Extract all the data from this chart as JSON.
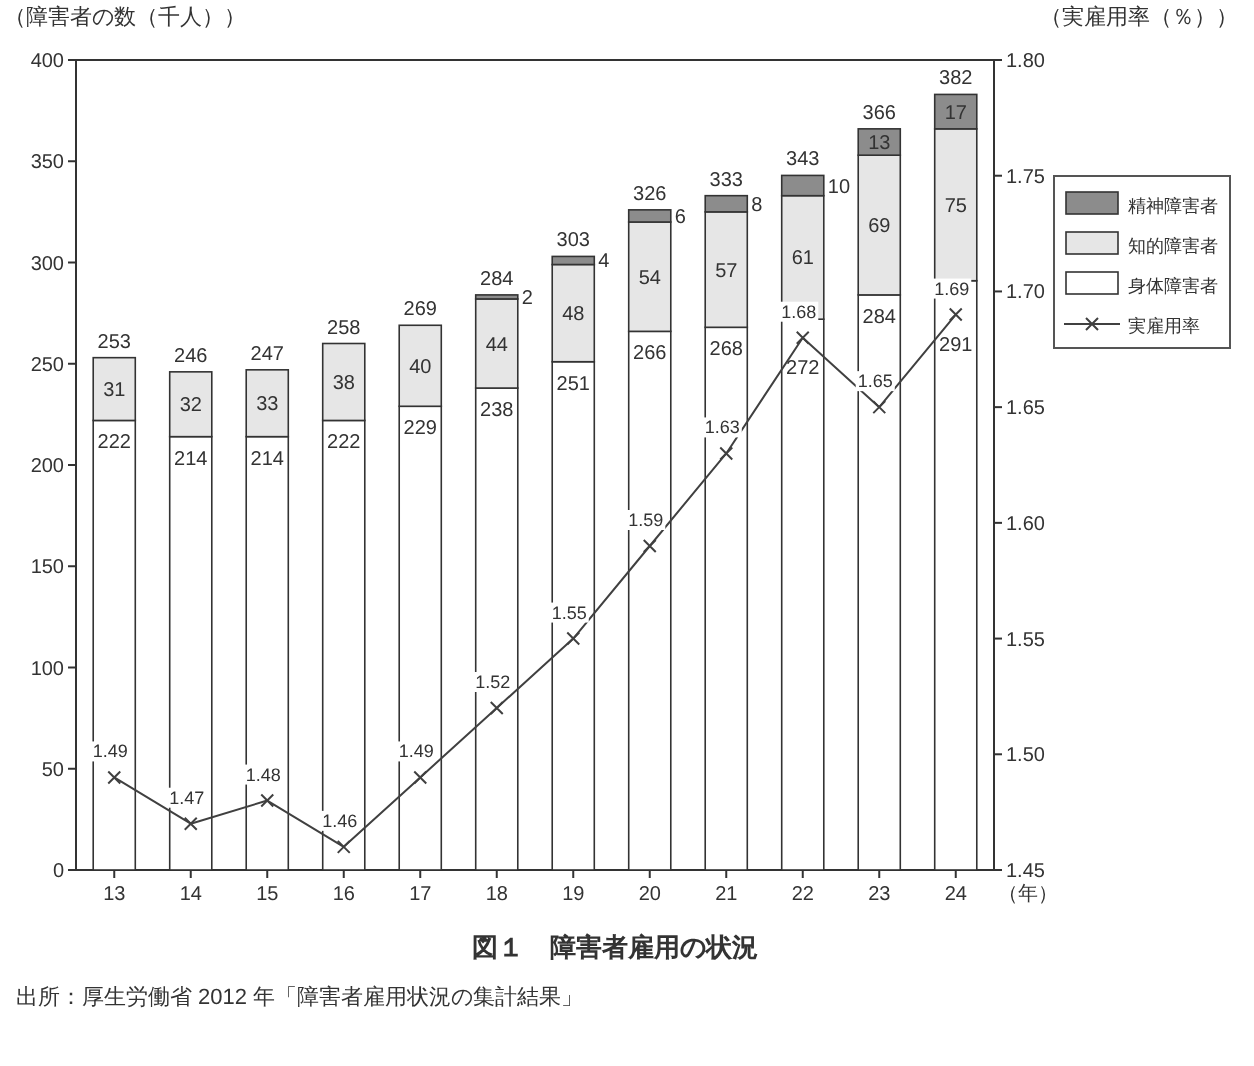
{
  "chart_data": {
    "type": "bar",
    "stacked": true,
    "title": "図１　障害者雇用の状況",
    "ylabel": "（障害者の数（千人））",
    "y2label": "（実雇用率（％））",
    "xlabel": "（年）",
    "categories": [
      "13",
      "14",
      "15",
      "16",
      "17",
      "18",
      "19",
      "20",
      "21",
      "22",
      "23",
      "24"
    ],
    "series": [
      {
        "name": "身体障害者",
        "color": "#ffffff",
        "values": [
          222,
          214,
          214,
          222,
          229,
          238,
          251,
          266,
          268,
          272,
          284,
          291
        ]
      },
      {
        "name": "知的障害者",
        "color": "#e6e6e6",
        "values": [
          31,
          32,
          33,
          38,
          40,
          44,
          48,
          54,
          57,
          61,
          69,
          75
        ]
      },
      {
        "name": "精神障害者",
        "color": "#8c8c8c",
        "values": [
          null,
          null,
          null,
          null,
          null,
          2,
          4,
          6,
          8,
          10,
          13,
          17
        ]
      },
      {
        "name": "実雇用率",
        "type": "line",
        "axis": "y2",
        "color": "#404040",
        "marker": "cross",
        "values": [
          1.49,
          1.47,
          1.48,
          1.46,
          1.49,
          1.52,
          1.55,
          1.59,
          1.63,
          1.68,
          1.65,
          1.69
        ]
      }
    ],
    "totals": [
      "253",
      "246",
      "247",
      "258",
      "269",
      "284",
      "303",
      "326",
      "333",
      "343",
      "366",
      "382"
    ],
    "data_labels": true,
    "ylim": [
      0,
      400
    ],
    "yticks": [
      0,
      50,
      100,
      150,
      200,
      250,
      300,
      350,
      400
    ],
    "y2lim": [
      1.45,
      1.8
    ],
    "y2ticks": [
      "1.45",
      "1.50",
      "1.55",
      "1.60",
      "1.65",
      "1.70",
      "1.75",
      "1.80"
    ],
    "legend": "right",
    "grid": false,
    "annotations": [
      "出所：厚生労働省 2012 年「障害者雇用状況の集計結果」"
    ]
  }
}
